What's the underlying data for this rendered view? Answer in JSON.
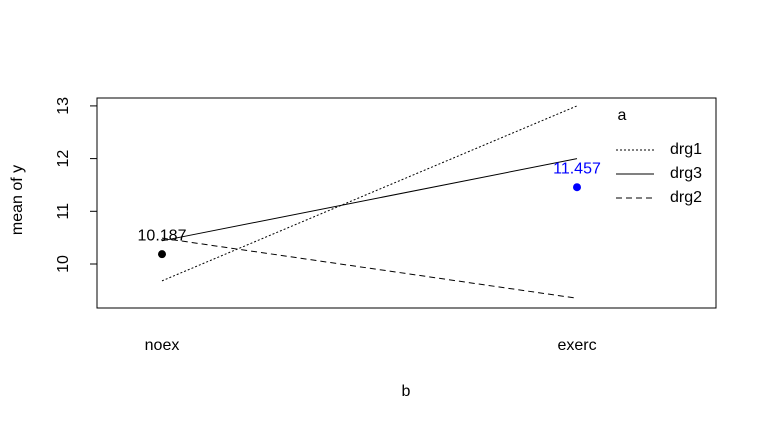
{
  "chart_data": {
    "type": "line",
    "xlabel": "b",
    "ylabel": "mean of  y",
    "categories": [
      "noex",
      "exerc"
    ],
    "series": [
      {
        "name": "drg1",
        "color": "#000000",
        "dash": "dotted",
        "values": [
          9.68,
          13.0
        ]
      },
      {
        "name": "drg3",
        "color": "#000000",
        "dash": "solid",
        "values": [
          10.44,
          12.0
        ]
      },
      {
        "name": "drg2",
        "color": "#000000",
        "dash": "dashed",
        "values": [
          10.49,
          9.35
        ]
      }
    ],
    "points": {
      "values": [
        10.187,
        11.457
      ],
      "colors": [
        "#000000",
        "#0000ff"
      ]
    },
    "legend_title": "a",
    "ylim": [
      9.165,
      13.15
    ],
    "yticks": [
      10,
      11,
      12,
      13
    ]
  }
}
